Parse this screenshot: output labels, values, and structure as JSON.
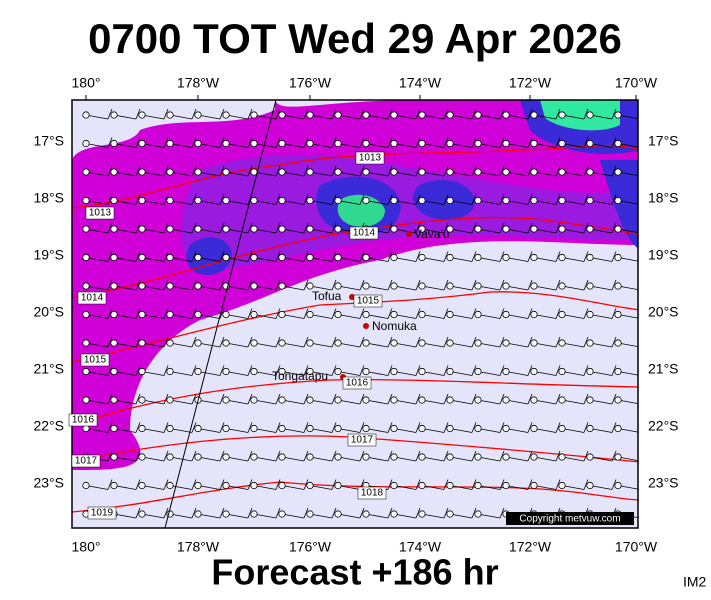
{
  "header": {
    "title": "0700 TOT Wed 29 Apr 2026"
  },
  "footer": {
    "forecast": "Forecast +186 hr",
    "code": "IM2"
  },
  "map": {
    "longitudes": [
      "180°",
      "178°W",
      "176°W",
      "174°W",
      "172°W",
      "170°W"
    ],
    "latitudes": [
      "17°S",
      "18°S",
      "19°S",
      "20°S",
      "21°S",
      "22°S",
      "23°S"
    ],
    "places": [
      "Vava'u",
      "Tofua",
      "Nomuka",
      "Tongatapu"
    ],
    "isobar_labels": [
      "1013",
      "1013",
      "1014",
      "1014",
      "1015",
      "1015",
      "1016",
      "1016",
      "1017",
      "1017",
      "1018",
      "1019"
    ],
    "copyright": "Copyright metvuw.com"
  }
}
